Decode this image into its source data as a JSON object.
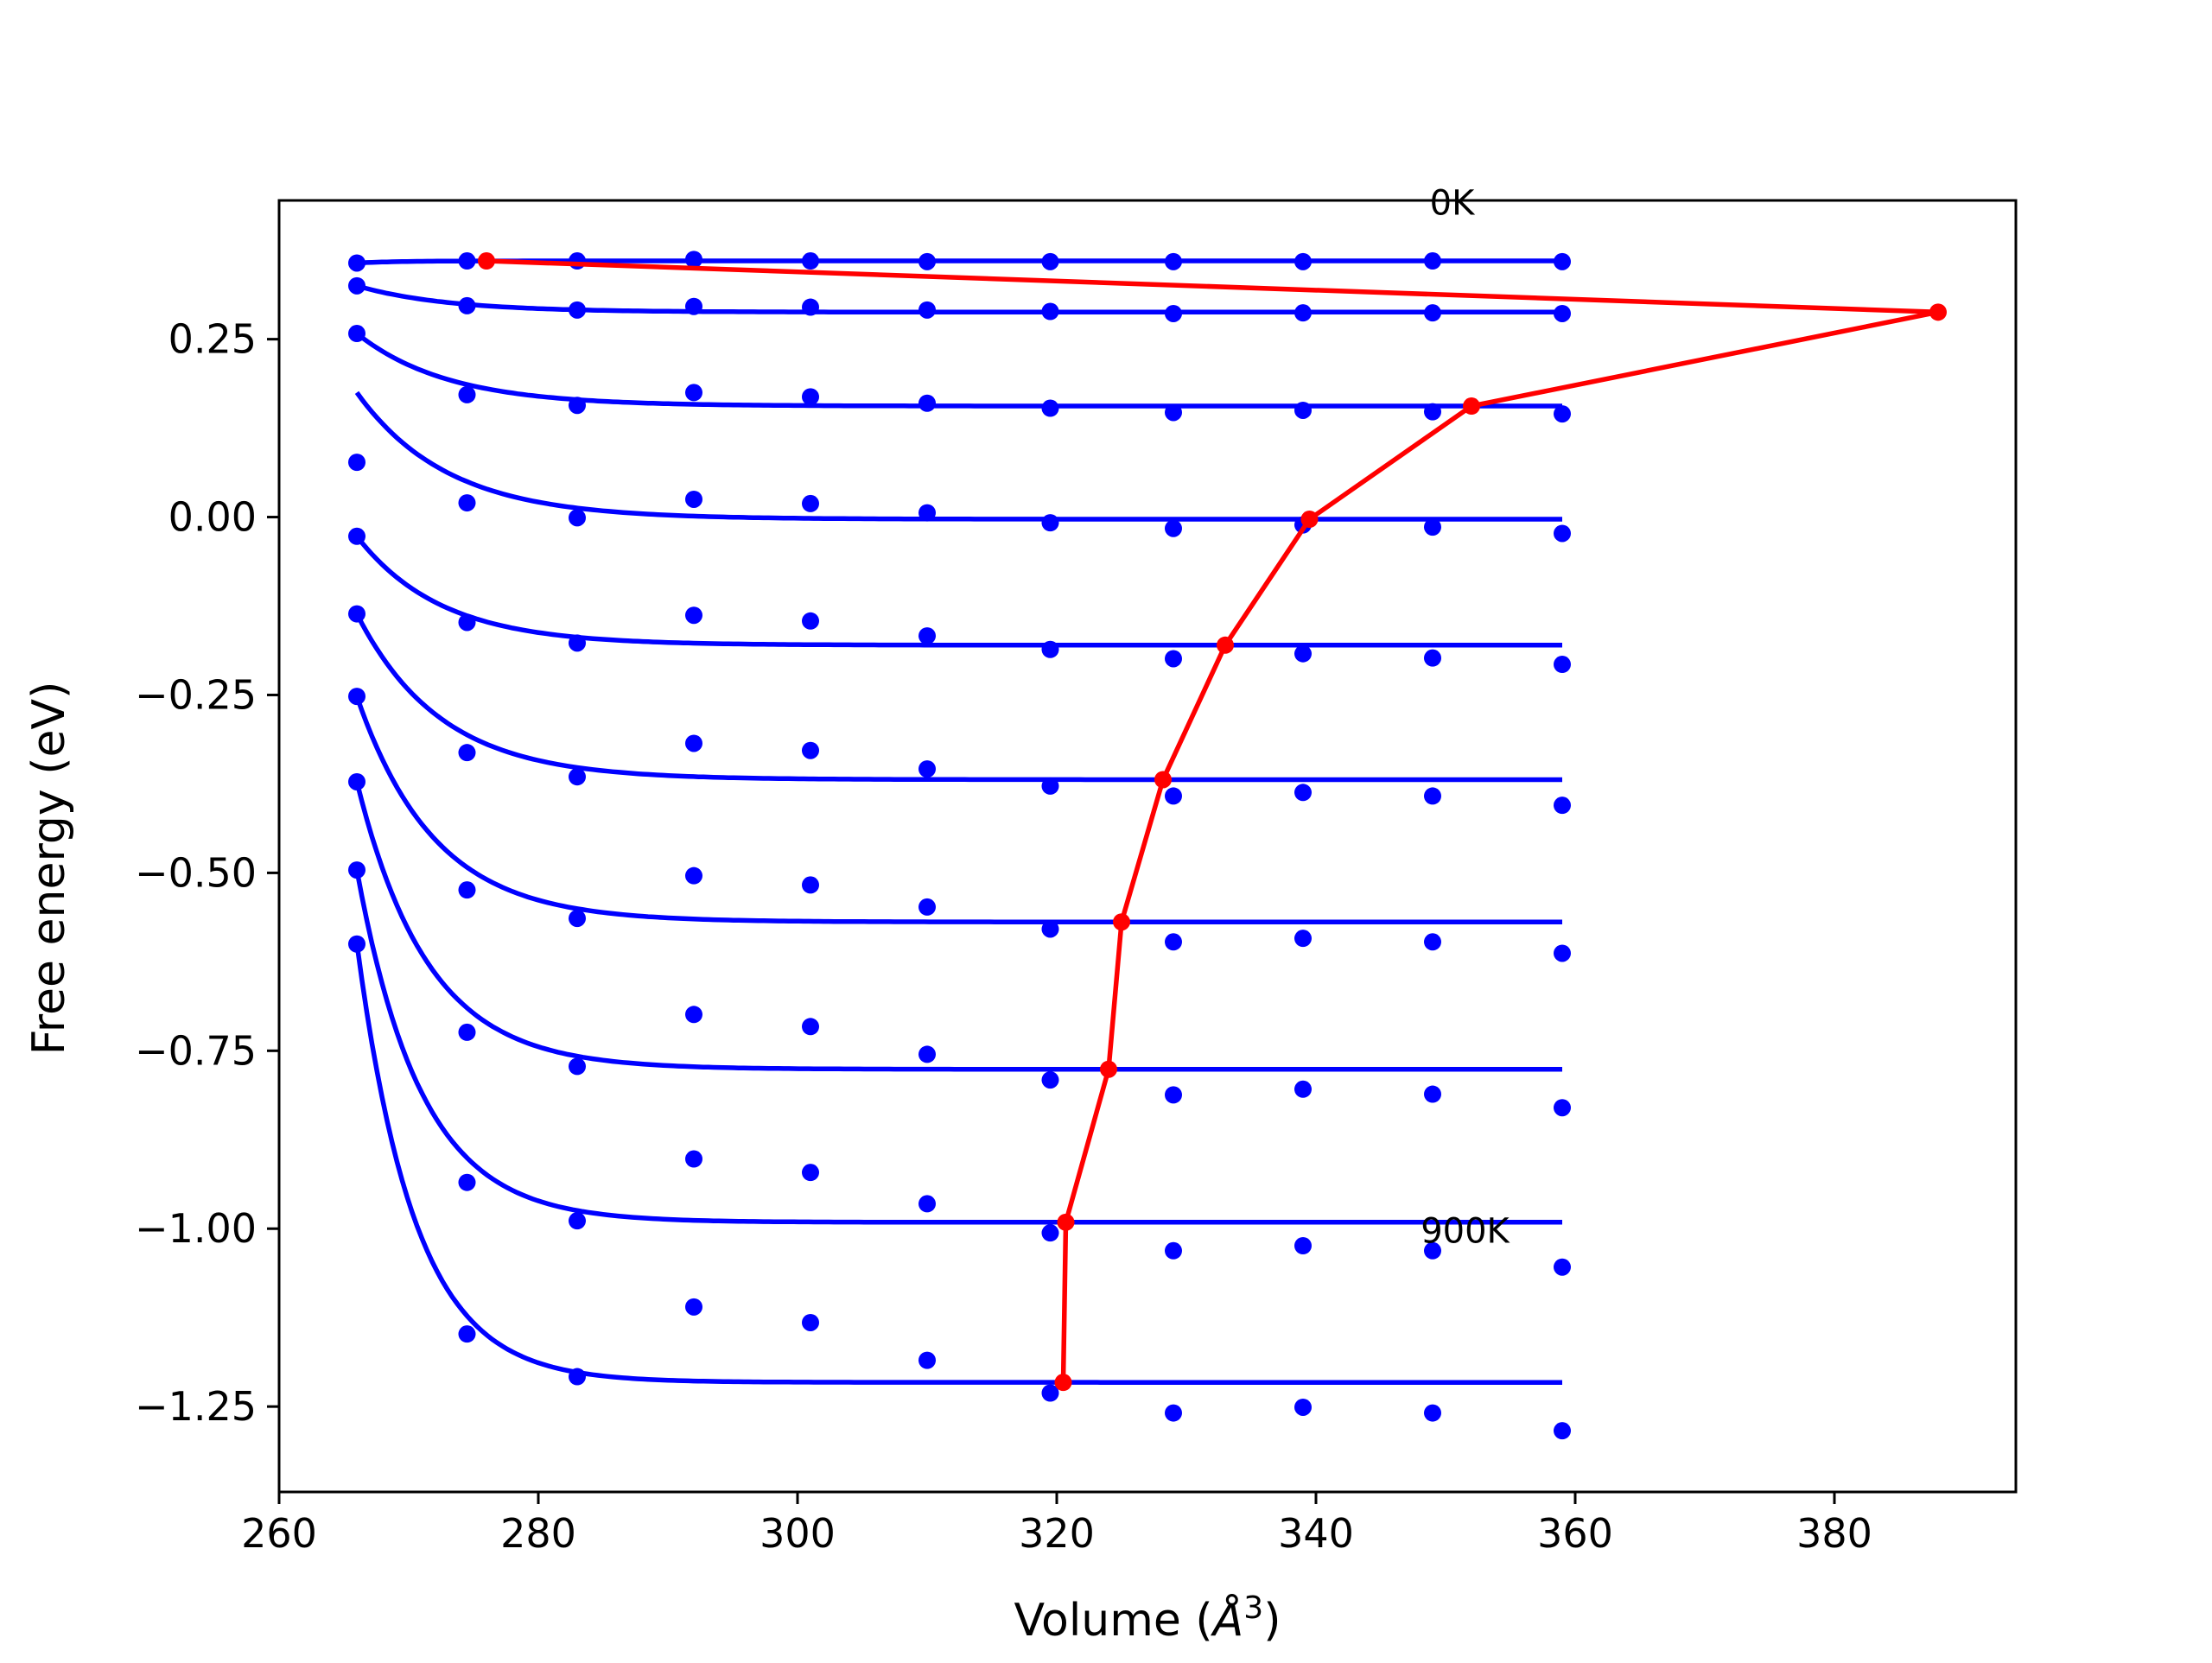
{
  "chart_data": {
    "type": "line",
    "title": "",
    "xlabel_main": "Volume (",
    "xlabel_sym": "Å",
    "xlabel_exp": "3",
    "xlabel_end": ")",
    "ylabel": "Free energy (eV)",
    "xlim": [
      260,
      394
    ],
    "ylim": [
      -1.37,
      0.445
    ],
    "xticks": [
      260,
      280,
      300,
      320,
      340,
      360,
      380
    ],
    "xtick_labels": [
      "260",
      "280",
      "300",
      "320",
      "340",
      "360",
      "380"
    ],
    "yticks": [
      0.25,
      0.0,
      -0.25,
      -0.5,
      -0.75,
      -1.0,
      -1.25
    ],
    "ytick_labels": [
      "0.25",
      "0.00",
      "−0.25",
      "−0.50",
      "−0.75",
      "−1.00",
      "−1.25"
    ],
    "annotations": [
      {
        "text": "0K",
        "x": 350.5,
        "y": 0.425
      },
      {
        "text": "900K",
        "x": 351.5,
        "y": -1.02
      }
    ],
    "grid": false,
    "colors": {
      "data": "#0000ff",
      "equilibrium": "#ff0000",
      "axes": "#000000"
    },
    "volumes": [
      266,
      274.5,
      283,
      292,
      301,
      310,
      319.5,
      329,
      339,
      349,
      359
    ],
    "temperature_series": [
      {
        "points": [
          0.357,
          0.36,
          0.36,
          0.362,
          0.36,
          0.359,
          0.359,
          0.359,
          0.359,
          0.36,
          0.359
        ],
        "fit": {
          "min_energy": 0.36,
          "equilibrium_volume": 276,
          "amplitude": -0.003,
          "decay": 3
        }
      },
      {
        "points": [
          0.325,
          0.297,
          0.291,
          0.296,
          0.295,
          0.291,
          0.289,
          0.286,
          0.287,
          0.287,
          0.286
        ],
        "fit": {
          "min_energy": 0.288,
          "equilibrium_volume": 388,
          "amplitude": 0.037,
          "decay": 7
        }
      },
      {
        "points": [
          0.258,
          0.172,
          0.157,
          0.175,
          0.169,
          0.16,
          0.153,
          0.147,
          0.15,
          0.148,
          0.145
        ],
        "fit": {
          "min_energy": 0.156,
          "equilibrium_volume": 352,
          "amplitude": 0.102,
          "decay": 7
        }
      },
      {
        "points": [
          0.077,
          0.02,
          -0.001,
          0.025,
          0.019,
          0.006,
          -0.008,
          -0.016,
          -0.011,
          -0.014,
          -0.023
        ],
        "fit": {
          "min_energy": -0.003,
          "equilibrium_volume": 339.5,
          "amplitude": 0.178,
          "decay": 7
        }
      },
      {
        "points": [
          -0.027,
          -0.148,
          -0.177,
          -0.138,
          -0.146,
          -0.167,
          -0.186,
          -0.199,
          -0.192,
          -0.198,
          -0.207
        ],
        "fit": {
          "min_energy": -0.18,
          "equilibrium_volume": 333,
          "amplitude": 0.153,
          "decay": 6.5
        }
      },
      {
        "points": [
          -0.136,
          -0.331,
          -0.365,
          -0.318,
          -0.328,
          -0.354,
          -0.378,
          -0.392,
          -0.387,
          -0.392,
          -0.405
        ],
        "fit": {
          "min_energy": -0.369,
          "equilibrium_volume": 328.2,
          "amplitude": 0.233,
          "decay": 6.5
        }
      },
      {
        "points": [
          -0.252,
          -0.524,
          -0.564,
          -0.504,
          -0.517,
          -0.548,
          -0.579,
          -0.597,
          -0.592,
          -0.597,
          -0.613
        ],
        "fit": {
          "min_energy": -0.569,
          "equilibrium_volume": 325,
          "amplitude": 0.317,
          "decay": 6
        }
      },
      {
        "points": [
          -0.372,
          -0.724,
          -0.772,
          -0.699,
          -0.716,
          -0.755,
          -0.791,
          -0.812,
          -0.804,
          -0.811,
          -0.83
        ],
        "fit": {
          "min_energy": -0.776,
          "equilibrium_volume": 324,
          "amplitude": 0.404,
          "decay": 5.5
        }
      },
      {
        "points": [
          -0.496,
          -0.935,
          -0.989,
          -0.902,
          -0.921,
          -0.965,
          -1.006,
          -1.031,
          -1.024,
          -1.031,
          -1.054
        ],
        "fit": {
          "min_energy": -0.991,
          "equilibrium_volume": 320.7,
          "amplitude": 0.495,
          "decay": 5
        }
      },
      {
        "points": [
          -0.6,
          -1.148,
          -1.208,
          -1.11,
          -1.132,
          -1.185,
          -1.231,
          -1.259,
          -1.251,
          -1.259,
          -1.284
        ],
        "fit": {
          "min_energy": -1.216,
          "equilibrium_volume": 320.5,
          "amplitude": 0.617,
          "decay": 4.5
        }
      }
    ],
    "equilibrium_curve": {
      "x": [
        276,
        388,
        352,
        339.5,
        333,
        328.2,
        325,
        324,
        320.7,
        320.5
      ],
      "y": [
        0.36,
        0.288,
        0.156,
        -0.003,
        -0.18,
        -0.369,
        -0.569,
        -0.776,
        -0.991,
        -1.216
      ]
    }
  }
}
